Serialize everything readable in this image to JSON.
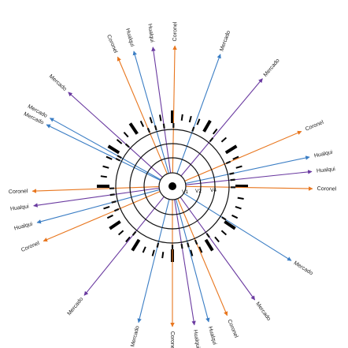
{
  "colors": {
    "Mercado": "#3a7dc4",
    "Coronel": "#e8761e",
    "Hualqui": "#6a3aa0"
  },
  "rings": {
    "inner_labels": [
      "V1",
      "V2",
      "V4"
    ]
  },
  "rays": [
    {
      "angle": 20,
      "label": "Mercado",
      "line": "Mercado"
    },
    {
      "angle": 1,
      "label": "Coronel",
      "line": "Coronel"
    },
    {
      "angle": -8,
      "label": "Hualqui",
      "line": "Hualqui"
    },
    {
      "angle": -16,
      "label": "Hualqui",
      "line": "Mercado"
    },
    {
      "angle": -23,
      "label": "Coronel",
      "line": "Coronel"
    },
    {
      "angle": -48,
      "label": "Mercado",
      "line": "Hualqui"
    },
    {
      "angle": 40,
      "label": "Mercado",
      "line": "Hualqui"
    },
    {
      "angle": -61,
      "label": "Mercado",
      "line": "Mercado"
    },
    {
      "angle": 67,
      "label": "Coronel",
      "line": "Coronel"
    },
    {
      "angle": 78,
      "label": "Hualqui",
      "line": "Mercado"
    },
    {
      "angle": 84,
      "label": "Hualqui",
      "line": "Hualqui"
    },
    {
      "angle": 91,
      "label": "Coronel",
      "line": "Coronel"
    },
    {
      "angle": 122,
      "label": "Mercado",
      "line": "Mercado"
    },
    {
      "angle": 144,
      "label": "Mercado",
      "line": "Hualqui"
    },
    {
      "angle": 157,
      "label": "Coronel",
      "line": "Coronel"
    },
    {
      "angle": 165,
      "label": "Hualqui",
      "line": "Mercado"
    },
    {
      "angle": 171,
      "label": "Hualqui",
      "line": "Hualqui"
    },
    {
      "angle": 180,
      "label": "Coronel",
      "line": "Coronel"
    },
    {
      "angle": 194,
      "label": "Mercado",
      "line": "Mercado"
    },
    {
      "angle": 219,
      "label": "Mercado",
      "line": "Hualqui"
    },
    {
      "angle": 247,
      "label": "Coronel",
      "line": "Coronel"
    },
    {
      "angle": 255,
      "label": "Hualqui",
      "line": "Mercado"
    },
    {
      "angle": 262,
      "label": "Hualqui",
      "line": "Hualqui"
    },
    {
      "angle": 268,
      "label": "Coronel",
      "line": "Coronel"
    },
    {
      "angle": 296,
      "label": "Mercado",
      "line": "Mercado"
    }
  ],
  "ticks": [
    {
      "angle": 0,
      "bold": true
    },
    {
      "angle": 8,
      "bold": false
    },
    {
      "angle": 15,
      "bold": false
    },
    {
      "angle": 22,
      "bold": false
    },
    {
      "angle": 30,
      "bold": true
    },
    {
      "angle": 38,
      "bold": false
    },
    {
      "angle": 48,
      "bold": false
    },
    {
      "angle": 58,
      "bold": true
    },
    {
      "angle": 66,
      "bold": false
    },
    {
      "angle": 74,
      "bold": false
    },
    {
      "angle": 90,
      "bold": true
    },
    {
      "angle": 100,
      "bold": false
    },
    {
      "angle": 108,
      "bold": false
    },
    {
      "angle": 116,
      "bold": false
    },
    {
      "angle": 124,
      "bold": true
    },
    {
      "angle": 132,
      "bold": false
    },
    {
      "angle": 140,
      "bold": false
    },
    {
      "angle": 148,
      "bold": true
    },
    {
      "angle": 156,
      "bold": false
    },
    {
      "angle": 164,
      "bold": false
    },
    {
      "angle": 180,
      "bold": true
    },
    {
      "angle": 188,
      "bold": false
    },
    {
      "angle": 196,
      "bold": false
    },
    {
      "angle": 204,
      "bold": false
    },
    {
      "angle": 212,
      "bold": true
    },
    {
      "angle": 220,
      "bold": false
    },
    {
      "angle": 228,
      "bold": false
    },
    {
      "angle": 236,
      "bold": true
    },
    {
      "angle": 244,
      "bold": false
    },
    {
      "angle": 252,
      "bold": false
    },
    {
      "angle": 270,
      "bold": true
    },
    {
      "angle": 278,
      "bold": false
    },
    {
      "angle": 286,
      "bold": false
    },
    {
      "angle": 294,
      "bold": false
    },
    {
      "angle": 302,
      "bold": true
    },
    {
      "angle": 310,
      "bold": false
    },
    {
      "angle": 318,
      "bold": false
    },
    {
      "angle": 326,
      "bold": true
    },
    {
      "angle": 334,
      "bold": false
    },
    {
      "angle": 342,
      "bold": false
    },
    {
      "angle": 350,
      "bold": false
    }
  ]
}
